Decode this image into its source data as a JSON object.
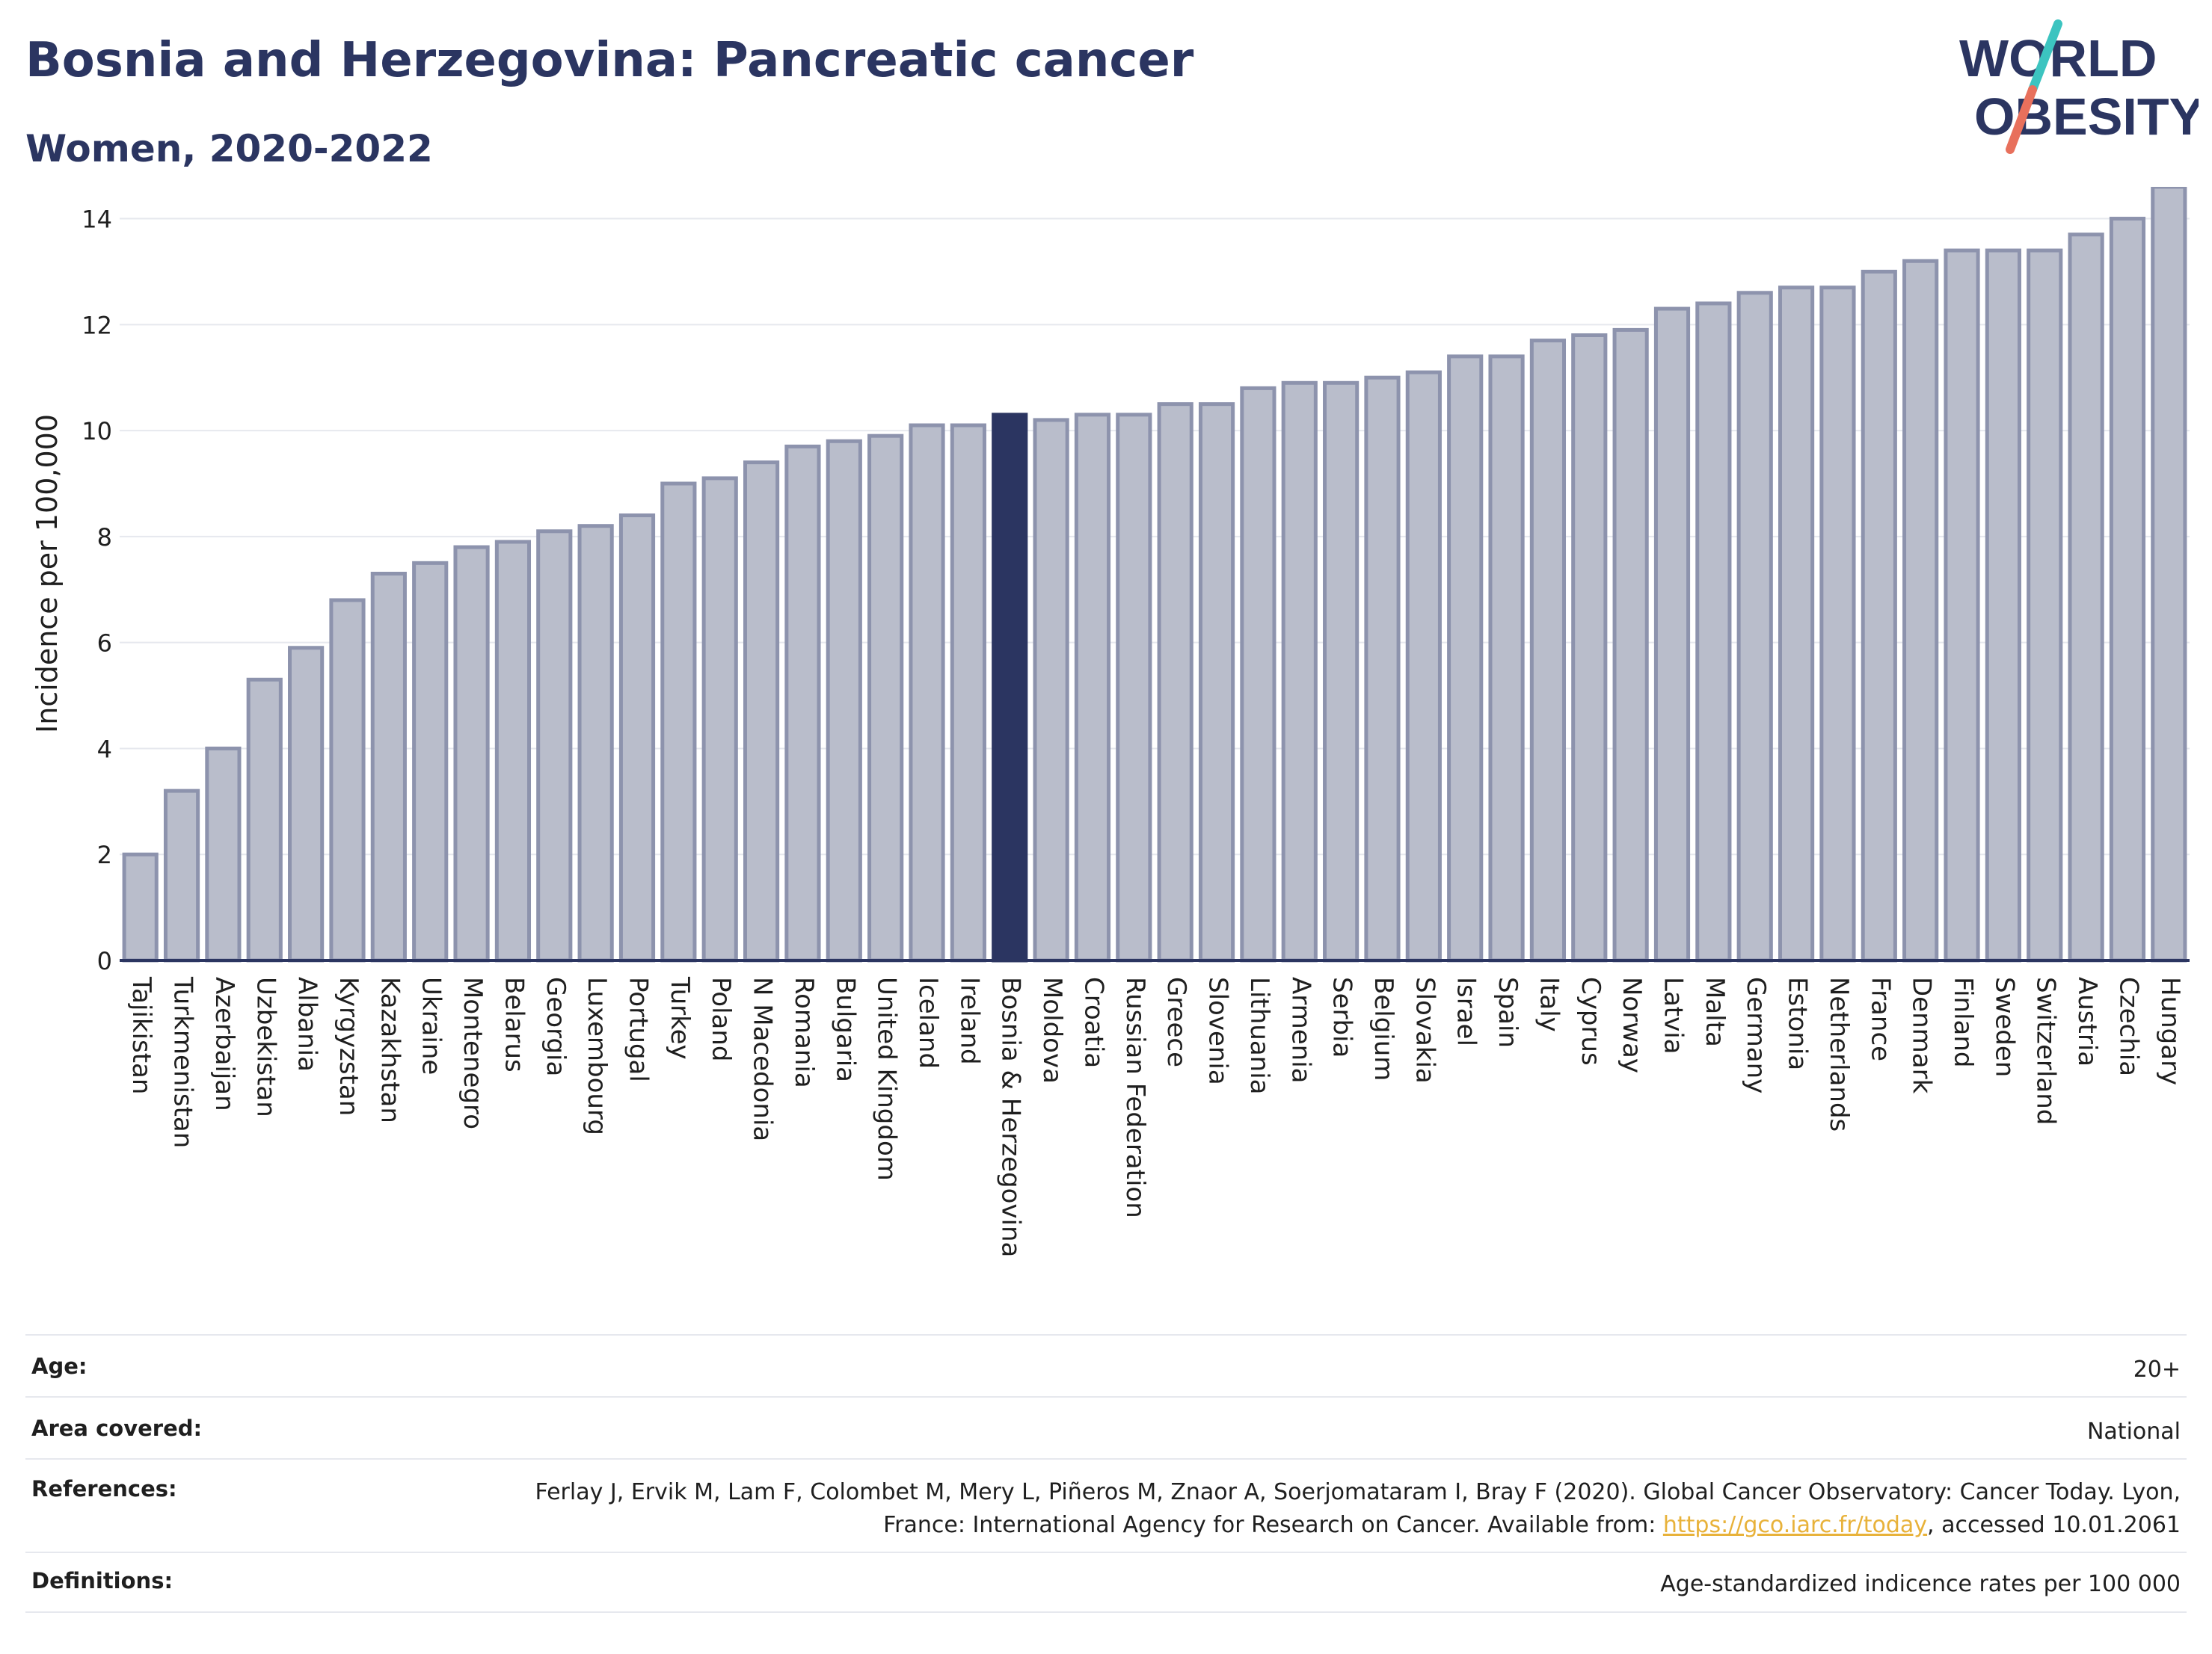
{
  "title": "Bosnia and Herzegovina: Pancreatic cancer",
  "subtitle": "Women, 2020-2022",
  "logo": {
    "line1": "WORLD",
    "line2": "OBESITY",
    "accent_colors": [
      "#3cc4c0",
      "#e8705c"
    ]
  },
  "colors": {
    "bar": "#b9bdcb",
    "bar_stroke": "#8d93ad",
    "highlight": "#2b3561",
    "grid": "#e6e8ee",
    "axis": "#2b3561"
  },
  "chart_data": {
    "type": "bar",
    "ylabel": "Incidence per 100,000",
    "xlabel": "",
    "ylim": [
      0,
      14.6
    ],
    "yticks": [
      0,
      2,
      4,
      6,
      8,
      10,
      12,
      14
    ],
    "grid": true,
    "highlight": "Bosnia & Herzegovina",
    "categories": [
      "Tajikistan",
      "Turkmenistan",
      "Azerbaijan",
      "Uzbekistan",
      "Albania",
      "Kyrgyzstan",
      "Kazakhstan",
      "Ukraine",
      "Montenegro",
      "Belarus",
      "Georgia",
      "Luxembourg",
      "Portugal",
      "Turkey",
      "Poland",
      "N Macedonia",
      "Romania",
      "Bulgaria",
      "United Kingdom",
      "Iceland",
      "Ireland",
      "Bosnia & Herzegovina",
      "Moldova",
      "Croatia",
      "Russian Federation",
      "Greece",
      "Slovenia",
      "Lithuania",
      "Armenia",
      "Serbia",
      "Belgium",
      "Slovakia",
      "Israel",
      "Spain",
      "Italy",
      "Cyprus",
      "Norway",
      "Latvia",
      "Malta",
      "Germany",
      "Estonia",
      "Netherlands",
      "France",
      "Denmark",
      "Finland",
      "Sweden",
      "Switzerland",
      "Austria",
      "Czechia",
      "Hungary"
    ],
    "values": [
      2.0,
      3.2,
      4.0,
      5.3,
      5.9,
      6.8,
      7.3,
      7.5,
      7.8,
      7.9,
      8.1,
      8.2,
      8.4,
      9.0,
      9.1,
      9.4,
      9.7,
      9.8,
      9.9,
      10.1,
      10.1,
      10.3,
      10.2,
      10.3,
      10.3,
      10.5,
      10.5,
      10.8,
      10.9,
      10.9,
      11.0,
      11.1,
      11.4,
      11.4,
      11.7,
      11.8,
      11.9,
      12.3,
      12.4,
      12.6,
      12.7,
      12.7,
      13.0,
      13.2,
      13.4,
      13.4,
      13.4,
      13.7,
      14.0,
      14.6
    ]
  },
  "meta": {
    "age_label": "Age:",
    "age_value": "20+",
    "area_label": "Area covered:",
    "area_value": "National",
    "ref_label": "References:",
    "ref_text1": "Ferlay J, Ervik M, Lam F, Colombet M, Mery L, Piñeros M, Znaor A, Soerjomataram I, Bray F (2020). Global Cancer Observatory: Cancer Today. Lyon, France: International Agency for Research on Cancer. Available from: ",
    "ref_link": "https://gco.iarc.fr/today",
    "ref_text2": ", accessed 10.01.2061",
    "def_label": "Definitions:",
    "def_value": "Age-standardized indicence rates per 100 000"
  }
}
